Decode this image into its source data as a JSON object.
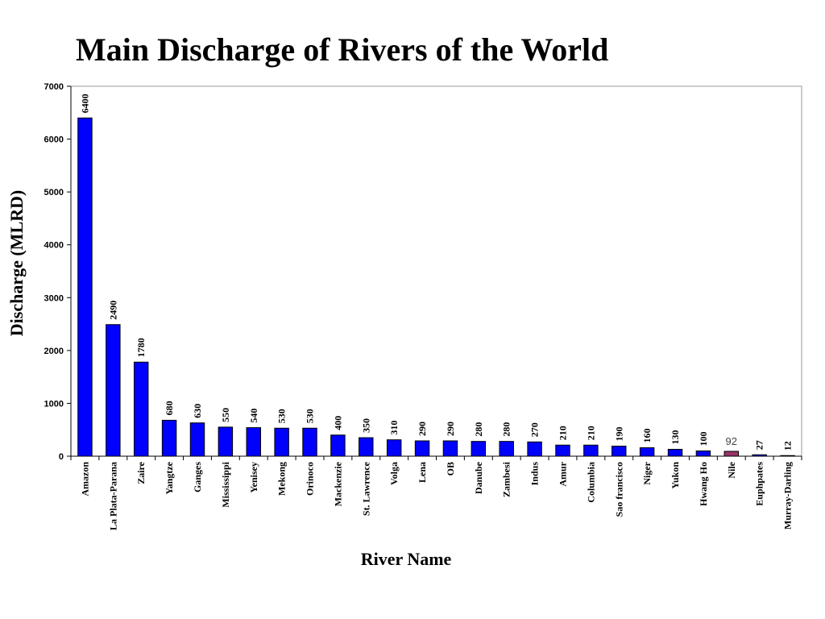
{
  "chart_data": {
    "type": "bar",
    "title": "Main Discharge of Rivers of the World",
    "xlabel": "River Name",
    "ylabel": "Discharge (MLRD)",
    "ylim": [
      0,
      7000
    ],
    "yticks": [
      0,
      1000,
      2000,
      3000,
      4000,
      5000,
      6000,
      7000
    ],
    "categories": [
      "Amazon",
      "La Plata-Parana",
      "Zaire",
      "Yangtze",
      "Ganges",
      "Mississippi",
      "Yenisey",
      "Mekong",
      "Orinoco",
      "Mackenzie",
      "St. Lawrence",
      "Volga",
      "Lena",
      "OB",
      "Danube",
      "Zambesi",
      "Indus",
      "Amur",
      "Columbia",
      "Sao francisco",
      "Niger",
      "Yukon",
      "Hwang Ho",
      "Nile",
      "Euphpates",
      "Murray-Darling"
    ],
    "values": [
      6400,
      2490,
      1780,
      680,
      630,
      550,
      540,
      530,
      530,
      400,
      350,
      310,
      290,
      290,
      280,
      280,
      270,
      210,
      210,
      190,
      160,
      130,
      100,
      92,
      27,
      12
    ],
    "value_labels": [
      "6400",
      "2490",
      "1780",
      "680",
      "630",
      "550",
      "540",
      "530",
      "530",
      "400",
      "350",
      "310",
      "290",
      "290",
      "280",
      "280",
      "270",
      "210",
      "210",
      "190",
      "160",
      "130",
      "100",
      "92",
      "27",
      "12"
    ],
    "bar_color": "#0000ff",
    "highlight_index": 23,
    "highlight_color": "#993366",
    "grid": false,
    "legend": "none"
  }
}
